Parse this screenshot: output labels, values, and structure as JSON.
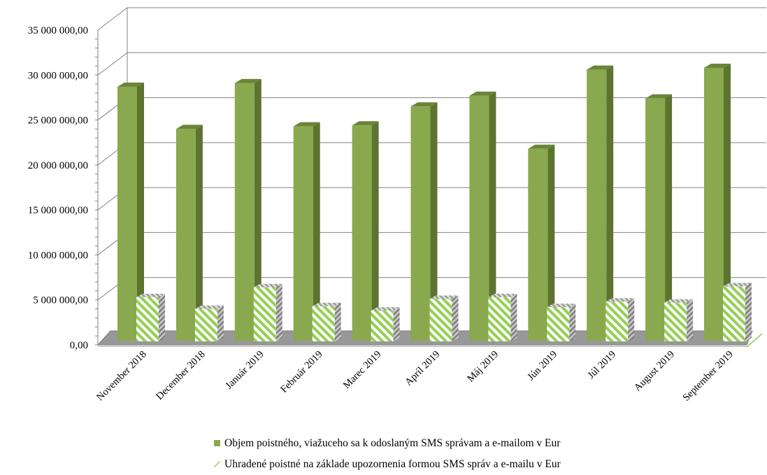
{
  "chart_data": {
    "type": "bar",
    "categories": [
      "November 2018",
      "December 2018",
      "Január 2019",
      "Február 2019",
      "Marec 2019",
      "Apríl 2019",
      "Máj 2019",
      "Jún 2019",
      "Júl 2019",
      "August 2019",
      "September 2019"
    ],
    "series": [
      {
        "name": "Objem poistného, viažuceho sa k odoslaným SMS správam a e-mailom v Eur",
        "color": "#8aa84e",
        "values": [
          28700000,
          24000000,
          29100000,
          24300000,
          24400000,
          26500000,
          27700000,
          21800000,
          30600000,
          27400000,
          30800000
        ]
      },
      {
        "name": "Uhradené poistné na základe upozornenia formou SMS správ a e-mailu v Eur",
        "color": "#92d050",
        "pattern": "diagonal-stripes",
        "values": [
          5300000,
          4000000,
          6400000,
          4300000,
          3800000,
          5100000,
          5300000,
          4200000,
          4800000,
          4700000,
          6500000
        ]
      }
    ],
    "title": "",
    "xlabel": "",
    "ylabel": "",
    "ylim": [
      0,
      35000000
    ],
    "yticks": [
      "0,00",
      "5 000 000,00",
      "10 000 000,00",
      "15 000 000,00",
      "20 000 000,00",
      "25 000 000,00",
      "30 000 000,00",
      "35 000 000,00"
    ],
    "grid": true,
    "legend": "bottom",
    "style": "3d-clustered-column"
  }
}
